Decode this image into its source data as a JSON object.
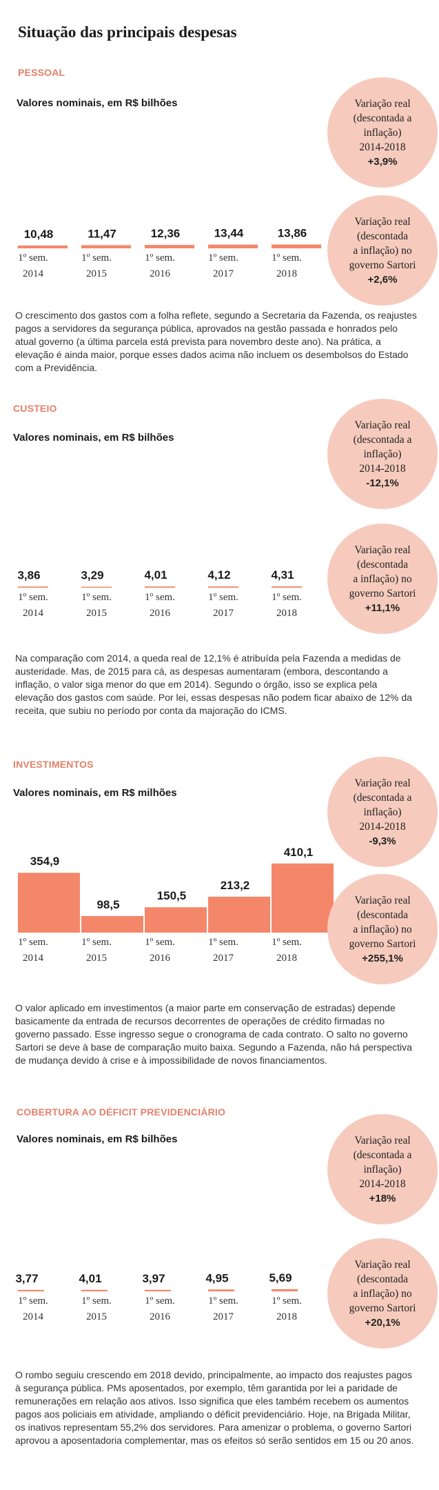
{
  "page_title": "Situação das principais despesas",
  "colors": {
    "bar": "#f4876a",
    "bubble": "#f6cbbd",
    "label": "#e3806a"
  },
  "sections": [
    {
      "label": "PESSOAL",
      "subtitle": "Valores nominais, em R$ bilhões",
      "bubbles": [
        {
          "text": "Variação real\n(descontada a\ninflação)\n2014-2018",
          "value": "+3,9%"
        },
        {
          "text": "Variação real\n(descontada\na inflação) no\ngoverno Sartori",
          "value": "+2,6%"
        }
      ],
      "paragraph": "O crescimento dos gastos com a folha reflete, segundo a Secretaria da Fazenda, os reajustes pagos a servidores da segurança pública, aprovados na gestão passada e honrados pelo atual governo (a última parcela está prevista para novembro deste ano). Na prática, a elevação é ainda maior, porque esses dados acima não incluem os desembolsos do Estado com a Previdência."
    },
    {
      "label": "CUSTEIO",
      "subtitle": "Valores nominais, em R$ bilhões",
      "bubbles": [
        {
          "text": "Variação real\n(descontada a\ninflação)\n2014-2018",
          "value": "-12,1%"
        },
        {
          "text": "Variação real\n(descontada\na inflação) no\ngoverno Sartori",
          "value": "+11,1%"
        }
      ],
      "paragraph": "Na comparação com 2014, a queda real de 12,1% é atribuída pela Fazenda a medidas de austeridade. Mas, de 2015 para cá, as despesas aumentaram (embora, descontando a inflação, o valor siga menor do que em 2014). Segundo o órgão, isso se explica pela elevação dos gastos com saúde. Por lei, essas despesas não podem ficar abaixo de 12% da receita, que subiu no período por conta da majoração do ICMS."
    },
    {
      "label": "INVESTIMENTOS",
      "subtitle": "Valores nominais, em R$ milhões",
      "bubbles": [
        {
          "text": "Variação real\n(descontada a\ninflação)\n2014-2018",
          "value": "-9,3%"
        },
        {
          "text": "Variação real\n(descontada\na inflação) no\ngoverno Sartori",
          "value": "+255,1%"
        }
      ],
      "paragraph": "O valor aplicado em investimentos (a maior parte em conservação de estradas) depende basicamente da entrada de recursos decorrentes de operações de crédito firmadas no governo passado. Esse ingresso segue o cronograma de cada contrato. O salto no governo Sartori se deve à base de comparação muito baixa. Segundo a Fazenda, não há perspectiva de mudança devido à crise e à impossibilidade de novos financiamentos."
    },
    {
      "label": "COBERTURA AO DÉFICIT PREVIDENCIÁRIO",
      "subtitle": "Valores nominais, em R$ bilhões",
      "bubbles": [
        {
          "text": "Variação real\n(descontada a\ninflação)\n2014-2018",
          "value": "+18%"
        },
        {
          "text": "Variação real\n(descontada\na inflação) no\ngoverno Sartori",
          "value": "+20,1%"
        }
      ],
      "paragraph": "O rombo seguiu crescendo em 2018 devido, principalmente, ao impacto dos reajustes pagos à segurança pública. PMs aposentados, por exemplo, têm garantida por lei a paridade de remunerações em relação aos ativos. Isso significa que eles também recebem os aumentos pagos aos policiais em atividade, ampliando o déficit previdenciário. Hoje, na Brigada Militar, os inativos representam 55,2% dos servidores. Para amenizar o problema, o governo Sartori aprovou a aposentadoria complementar, mas os efeitos só serão sentidos em 15 ou 20 anos."
    }
  ],
  "chart_data": [
    {
      "type": "bar",
      "title": "PESSOAL",
      "ylabel": "Valores nominais, em R$ bilhões",
      "categories": [
        "1º sem.\n2014",
        "1º sem.\n2015",
        "1º sem.\n2016",
        "1º sem.\n2017",
        "1º sem.\n2018"
      ],
      "values": [
        10.48,
        11.47,
        12.36,
        13.44,
        13.86
      ],
      "value_labels": [
        "10,48",
        "11,47",
        "12,36",
        "13,44",
        "13,86"
      ]
    },
    {
      "type": "bar",
      "title": "CUSTEIO",
      "ylabel": "Valores nominais, em R$ bilhões",
      "categories": [
        "1º sem.\n2014",
        "1º sem.\n2015",
        "1º sem.\n2016",
        "1º sem.\n2017",
        "1º sem.\n2018"
      ],
      "values": [
        3.86,
        3.29,
        4.01,
        4.12,
        4.31
      ],
      "value_labels": [
        "3,86",
        "3,29",
        "4,01",
        "4,12",
        "4,31"
      ]
    },
    {
      "type": "bar",
      "title": "INVESTIMENTOS",
      "ylabel": "Valores nominais, em R$ milhões",
      "categories": [
        "1º sem.\n2014",
        "1º sem.\n2015",
        "1º sem.\n2016",
        "1º sem.\n2017",
        "1º sem.\n2018"
      ],
      "values": [
        354.9,
        98.5,
        150.5,
        213.2,
        410.1
      ],
      "value_labels": [
        "354,9",
        "98,5",
        "150,5",
        "213,2",
        "410,1"
      ]
    },
    {
      "type": "bar",
      "title": "COBERTURA AO DÉFICIT PREVIDENCIÁRIO",
      "ylabel": "Valores nominais, em R$ bilhões",
      "categories": [
        "1º sem.\n2014",
        "1º sem.\n2015",
        "1º sem.\n2016",
        "1º sem.\n2017",
        "1º sem.\n2018"
      ],
      "values": [
        3.77,
        4.01,
        3.97,
        4.95,
        5.69
      ],
      "value_labels": [
        "3,77",
        "4,01",
        "3,97",
        "4,95",
        "5,69"
      ]
    }
  ]
}
